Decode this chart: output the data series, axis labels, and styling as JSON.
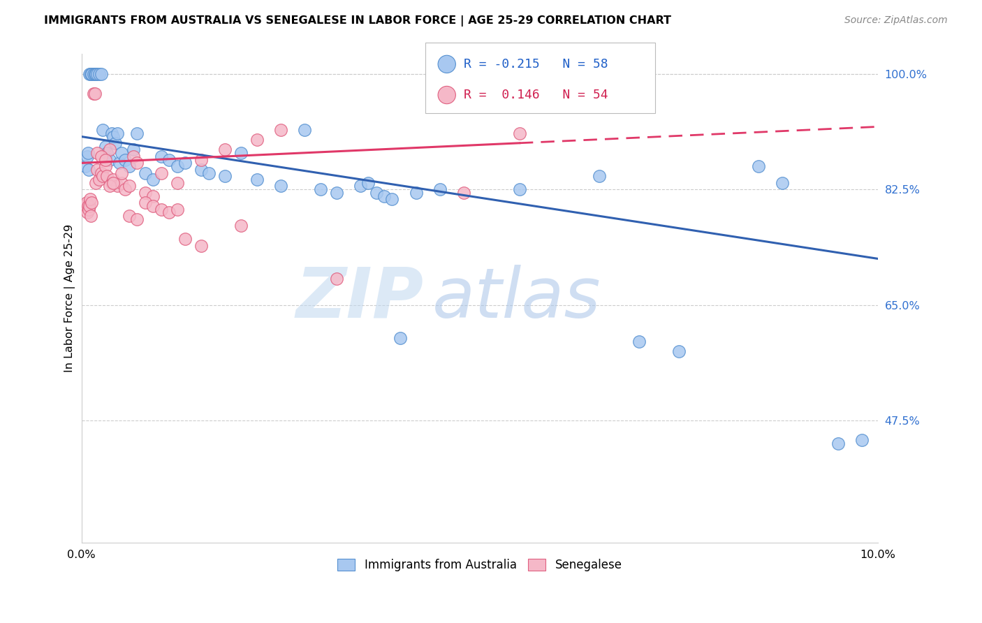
{
  "title": "IMMIGRANTS FROM AUSTRALIA VS SENEGALESE IN LABOR FORCE | AGE 25-29 CORRELATION CHART",
  "source": "Source: ZipAtlas.com",
  "ylabel": "In Labor Force | Age 25-29",
  "xmin": 0.0,
  "xmax": 10.0,
  "ymin": 29.0,
  "ymax": 103.0,
  "R_blue": -0.215,
  "N_blue": 58,
  "R_pink": 0.146,
  "N_pink": 54,
  "legend_label_blue": "Immigrants from Australia",
  "legend_label_pink": "Senegalese",
  "watermark_zip": "ZIP",
  "watermark_atlas": "atlas",
  "blue_fill": "#A8C8F0",
  "pink_fill": "#F5B8C8",
  "blue_edge": "#5590D0",
  "pink_edge": "#E06080",
  "blue_line": "#3060B0",
  "pink_line": "#E03868",
  "ytick_vals": [
    47.5,
    65.0,
    82.5,
    100.0
  ],
  "ytick_labels": [
    "47.5%",
    "65.0%",
    "82.5%",
    "100.0%"
  ],
  "grid_color": "#CCCCCC",
  "blue_line_y0": 90.5,
  "blue_line_y1": 72.0,
  "pink_line_y0": 86.5,
  "pink_line_y1": 92.0,
  "pink_solid_end": 5.5,
  "blue_scatter_x": [
    0.05,
    0.07,
    0.08,
    0.09,
    0.1,
    0.12,
    0.13,
    0.15,
    0.17,
    0.18,
    0.2,
    0.22,
    0.25,
    0.27,
    0.3,
    0.32,
    0.35,
    0.38,
    0.4,
    0.42,
    0.45,
    0.48,
    0.5,
    0.55,
    0.6,
    0.65,
    0.7,
    0.8,
    0.9,
    1.0,
    1.1,
    1.2,
    1.3,
    1.5,
    1.6,
    1.8,
    2.0,
    2.2,
    2.5,
    2.8,
    3.0,
    3.2,
    3.5,
    3.6,
    3.7,
    3.8,
    3.9,
    4.0,
    4.2,
    4.5,
    5.5,
    6.5,
    7.0,
    7.5,
    8.5,
    8.8,
    9.5,
    9.8
  ],
  "blue_scatter_y": [
    86.0,
    87.5,
    88.0,
    85.5,
    100.0,
    100.0,
    100.0,
    100.0,
    100.0,
    100.0,
    100.0,
    100.0,
    100.0,
    91.5,
    89.0,
    88.0,
    87.0,
    91.0,
    90.5,
    89.5,
    91.0,
    86.5,
    88.0,
    87.0,
    86.0,
    88.5,
    91.0,
    85.0,
    84.0,
    87.5,
    87.0,
    86.0,
    86.5,
    85.5,
    85.0,
    84.5,
    88.0,
    84.0,
    83.0,
    91.5,
    82.5,
    82.0,
    83.0,
    83.5,
    82.0,
    81.5,
    81.0,
    60.0,
    82.0,
    82.5,
    82.5,
    84.5,
    59.5,
    58.0,
    86.0,
    83.5,
    44.0,
    44.5
  ],
  "pink_scatter_x": [
    0.04,
    0.06,
    0.07,
    0.08,
    0.09,
    0.1,
    0.11,
    0.12,
    0.13,
    0.15,
    0.17,
    0.18,
    0.2,
    0.22,
    0.25,
    0.27,
    0.3,
    0.32,
    0.35,
    0.38,
    0.4,
    0.45,
    0.5,
    0.55,
    0.6,
    0.65,
    0.7,
    0.8,
    0.9,
    1.0,
    1.2,
    1.5,
    1.8,
    2.0,
    2.2,
    2.5,
    0.2,
    0.25,
    0.3,
    0.35,
    0.4,
    0.5,
    0.6,
    0.7,
    0.8,
    0.9,
    1.0,
    1.1,
    1.2,
    1.3,
    1.5,
    5.5,
    3.2,
    4.8
  ],
  "pink_scatter_y": [
    80.0,
    80.5,
    79.0,
    80.0,
    79.5,
    80.0,
    81.0,
    78.5,
    80.5,
    97.0,
    97.0,
    83.5,
    85.5,
    84.0,
    85.0,
    84.5,
    86.0,
    84.5,
    88.5,
    83.5,
    84.0,
    83.0,
    83.5,
    82.5,
    83.0,
    87.5,
    86.5,
    82.0,
    81.5,
    85.0,
    83.5,
    87.0,
    88.5,
    77.0,
    90.0,
    91.5,
    88.0,
    87.5,
    87.0,
    83.0,
    83.5,
    85.0,
    78.5,
    78.0,
    80.5,
    80.0,
    79.5,
    79.0,
    79.5,
    75.0,
    74.0,
    91.0,
    69.0,
    82.0
  ]
}
